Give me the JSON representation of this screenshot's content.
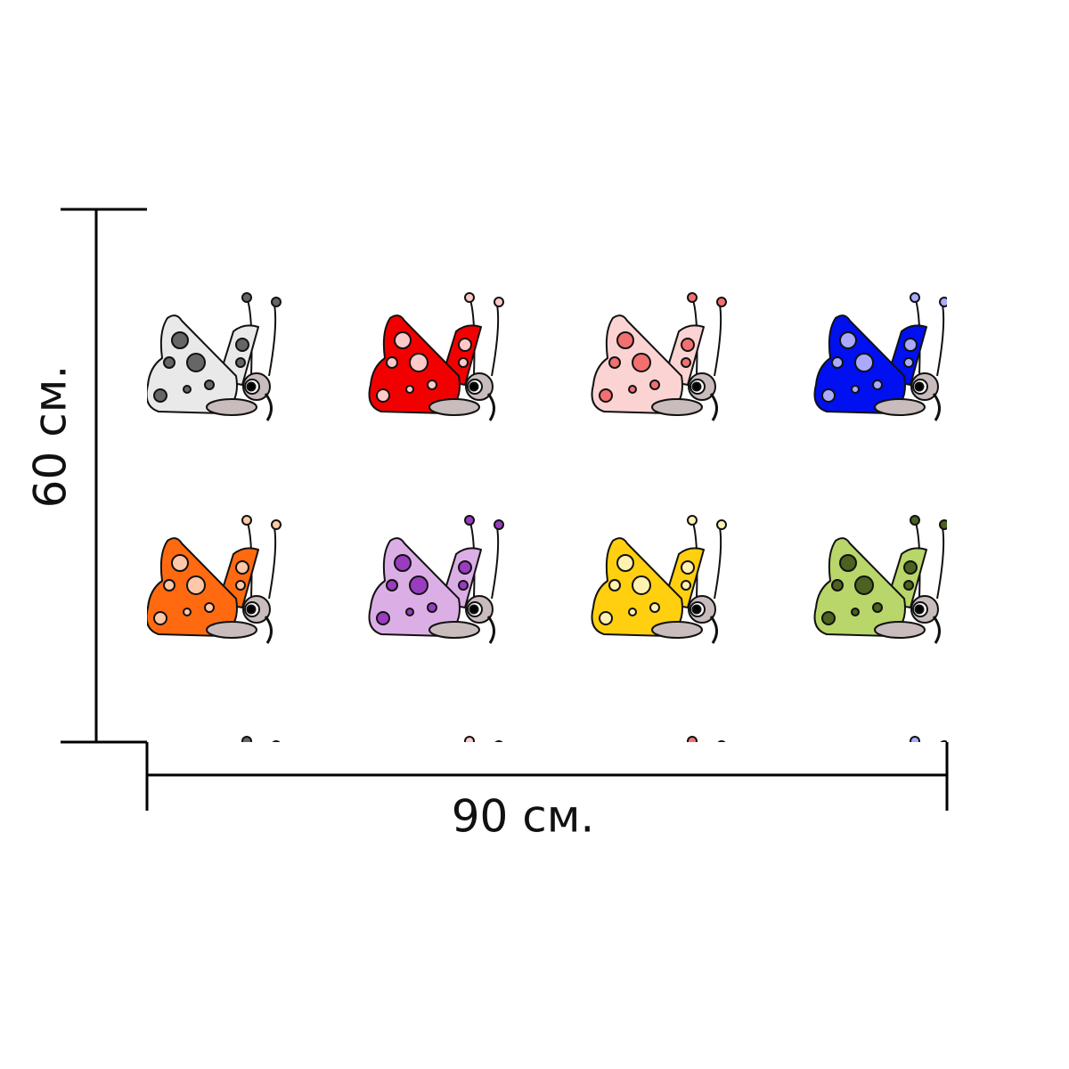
{
  "dimensions": {
    "height_label": "60 см.",
    "width_label": "90 см."
  }
}
